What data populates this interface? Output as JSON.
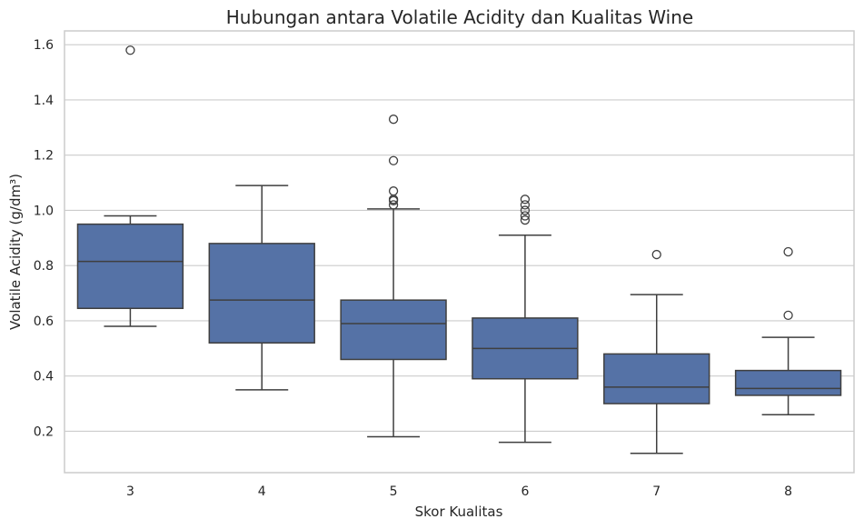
{
  "chart_data": {
    "type": "box",
    "title": "Hubungan antara Volatile Acidity dan Kualitas Wine",
    "xlabel": "Skor Kualitas",
    "ylabel": "Volatile Acidity (g/dm³)",
    "ylim": [
      0.05,
      1.65
    ],
    "yticks": [
      0.2,
      0.4,
      0.6,
      0.8,
      1.0,
      1.2,
      1.4,
      1.6
    ],
    "ytick_labels": [
      "0.2",
      "0.4",
      "0.6",
      "0.8",
      "1.0",
      "1.2",
      "1.4",
      "1.6"
    ],
    "grid": "horizontal",
    "box_color": "#5572a6",
    "line_color": "#3f3f3f",
    "grid_color": "#cccccc",
    "categories": [
      "3",
      "4",
      "5",
      "6",
      "7",
      "8"
    ],
    "boxes": [
      {
        "category": "3",
        "whisker_low": 0.58,
        "q1": 0.645,
        "median": 0.815,
        "q3": 0.95,
        "whisker_high": 0.98,
        "fliers": [
          1.58
        ]
      },
      {
        "category": "4",
        "whisker_low": 0.35,
        "q1": 0.52,
        "median": 0.675,
        "q3": 0.88,
        "whisker_high": 1.09,
        "fliers": []
      },
      {
        "category": "5",
        "whisker_low": 0.18,
        "q1": 0.46,
        "median": 0.59,
        "q3": 0.675,
        "whisker_high": 1.005,
        "fliers": [
          1.02,
          1.035,
          1.04,
          1.07,
          1.18,
          1.33
        ]
      },
      {
        "category": "6",
        "whisker_low": 0.16,
        "q1": 0.39,
        "median": 0.5,
        "q3": 0.61,
        "whisker_high": 0.91,
        "fliers": [
          0.965,
          0.98,
          1.0,
          1.02,
          1.04
        ]
      },
      {
        "category": "7",
        "whisker_low": 0.12,
        "q1": 0.3,
        "median": 0.36,
        "q3": 0.48,
        "whisker_high": 0.695,
        "fliers": [
          0.84
        ]
      },
      {
        "category": "8",
        "whisker_low": 0.26,
        "q1": 0.33,
        "median": 0.355,
        "q3": 0.42,
        "whisker_high": 0.54,
        "fliers": [
          0.62,
          0.85
        ]
      }
    ]
  }
}
